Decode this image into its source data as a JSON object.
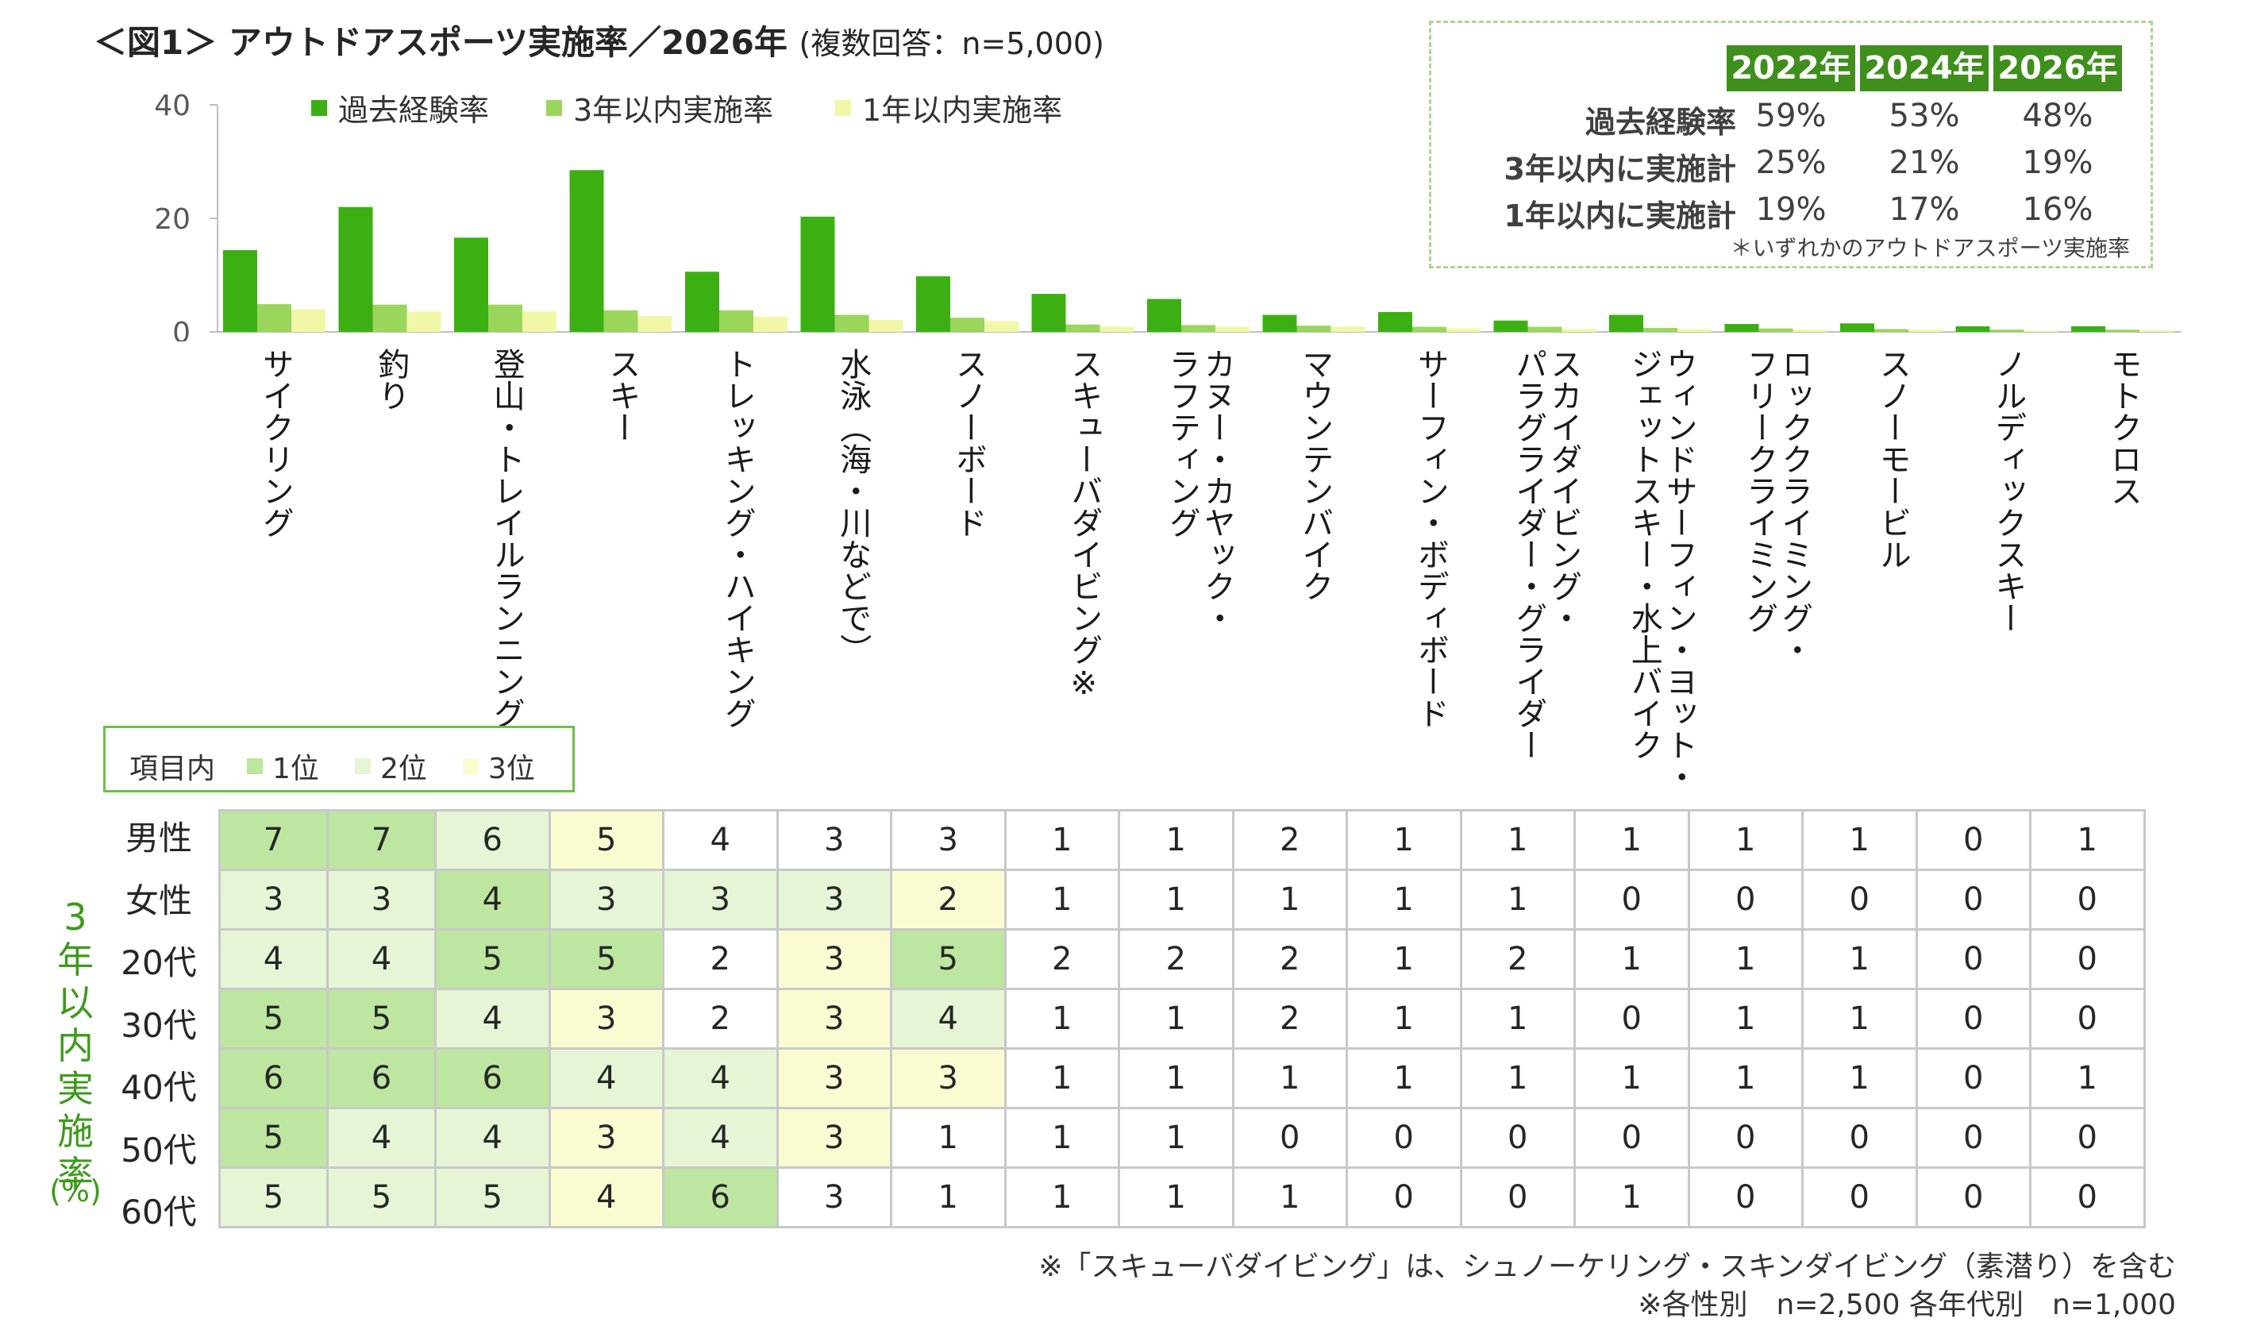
{
  "title": {
    "main": "＜図1＞ アウトドアスポーツ実施率／2026年",
    "sub": "(複数回答：n=5,000)"
  },
  "colors": {
    "past": "#3cb013",
    "three_year": "#9bd65c",
    "one_year": "#f1f7a6",
    "rank1": "#bde6a0",
    "rank2": "#e6f5d6",
    "rank3": "#fbfbd2",
    "header_green": "#3f8f1c",
    "side_label_green": "#3f9a1c"
  },
  "chart_data": {
    "type": "bar",
    "unit_label": "(%)",
    "ylim": [
      0,
      40
    ],
    "yticks": [
      "0",
      "20",
      "40"
    ],
    "categories": [
      "サイクリング",
      "釣り",
      "登山・トレイルランニング",
      "スキー",
      "トレッキング・ハイキング",
      "水泳（海・川などで）",
      "スノーボード",
      "スキューバダイビング※",
      "カヌー・カヤック・\nラフティング",
      "マウンテンバイク",
      "サーフィン・ボディボード",
      "スカイダイビング・\nパラグライダー・グライダー",
      "ウィンドサーフィン・ヨット・\nジェットスキー・水上バイク",
      "ロッククライミング・\nフリークライミング",
      "スノーモービル",
      "ノルディックスキー",
      "モトクロス"
    ],
    "series": [
      {
        "name": "過去経験率",
        "values": [
          14.4,
          22.0,
          16.6,
          28.5,
          10.6,
          20.3,
          9.8,
          6.7,
          5.8,
          3.0,
          3.5,
          2.0,
          3.0,
          1.4,
          1.5,
          1.0,
          1.0
        ]
      },
      {
        "name": "3年以内実施率",
        "values": [
          4.9,
          4.8,
          4.8,
          3.8,
          3.8,
          3.0,
          2.5,
          1.3,
          1.2,
          1.1,
          0.9,
          0.9,
          0.7,
          0.6,
          0.5,
          0.4,
          0.4
        ]
      },
      {
        "name": "1年以内実施率",
        "values": [
          4.0,
          3.6,
          3.6,
          2.8,
          2.7,
          2.1,
          1.9,
          0.9,
          0.9,
          0.9,
          0.6,
          0.5,
          0.5,
          0.4,
          0.4,
          0.2,
          0.3
        ]
      }
    ]
  },
  "summary": {
    "headers": [
      "2022年",
      "2024年",
      "2026年"
    ],
    "rows": [
      {
        "label": "過去経験率",
        "values": [
          "59%",
          "53%",
          "48%"
        ]
      },
      {
        "label": "3年以内に実施計",
        "values": [
          "25%",
          "21%",
          "19%"
        ]
      },
      {
        "label": "1年以内に実施計",
        "values": [
          "19%",
          "17%",
          "16%"
        ]
      }
    ],
    "note": "＊いずれかのアウトドアスポーツ実施率"
  },
  "table_legend": {
    "title": "項目内",
    "items": [
      "1位",
      "2位",
      "3位"
    ]
  },
  "table": {
    "side_label": "3年以内実施率",
    "side_unit": "(%)",
    "rows": [
      {
        "label": "男性",
        "values": [
          7,
          7,
          6,
          5,
          4,
          3,
          3,
          1,
          1,
          2,
          1,
          1,
          1,
          1,
          1,
          0,
          1
        ],
        "ranks": [
          1,
          1,
          2,
          3,
          0,
          0,
          0,
          0,
          0,
          0,
          0,
          0,
          0,
          0,
          0,
          0,
          0
        ]
      },
      {
        "label": "女性",
        "values": [
          3,
          3,
          4,
          3,
          3,
          3,
          2,
          1,
          1,
          1,
          1,
          1,
          0,
          0,
          0,
          0,
          0
        ],
        "ranks": [
          2,
          2,
          1,
          2,
          2,
          2,
          3,
          0,
          0,
          0,
          0,
          0,
          0,
          0,
          0,
          0,
          0
        ]
      },
      {
        "label": "20代",
        "values": [
          4,
          4,
          5,
          5,
          2,
          3,
          5,
          2,
          2,
          2,
          1,
          2,
          1,
          1,
          1,
          0,
          0
        ],
        "ranks": [
          2,
          2,
          1,
          1,
          0,
          3,
          1,
          0,
          0,
          0,
          0,
          0,
          0,
          0,
          0,
          0,
          0
        ]
      },
      {
        "label": "30代",
        "values": [
          5,
          5,
          4,
          3,
          2,
          3,
          4,
          1,
          1,
          2,
          1,
          1,
          0,
          1,
          1,
          0,
          0
        ],
        "ranks": [
          1,
          1,
          2,
          3,
          0,
          3,
          2,
          0,
          0,
          0,
          0,
          0,
          0,
          0,
          0,
          0,
          0
        ]
      },
      {
        "label": "40代",
        "values": [
          6,
          6,
          6,
          4,
          4,
          3,
          3,
          1,
          1,
          1,
          1,
          1,
          1,
          1,
          1,
          0,
          1
        ],
        "ranks": [
          1,
          1,
          1,
          2,
          2,
          3,
          3,
          0,
          0,
          0,
          0,
          0,
          0,
          0,
          0,
          0,
          0
        ]
      },
      {
        "label": "50代",
        "values": [
          5,
          4,
          4,
          3,
          4,
          3,
          1,
          1,
          1,
          0,
          0,
          0,
          0,
          0,
          0,
          0,
          0
        ],
        "ranks": [
          1,
          2,
          2,
          3,
          2,
          3,
          0,
          0,
          0,
          0,
          0,
          0,
          0,
          0,
          0,
          0,
          0
        ]
      },
      {
        "label": "60代",
        "values": [
          5,
          5,
          5,
          4,
          6,
          3,
          1,
          1,
          1,
          1,
          0,
          0,
          1,
          0,
          0,
          0,
          0
        ],
        "ranks": [
          2,
          2,
          2,
          3,
          1,
          0,
          0,
          0,
          0,
          0,
          0,
          0,
          0,
          0,
          0,
          0,
          0
        ]
      }
    ]
  },
  "footnotes": [
    "※「スキューバダイビング」は、シュノーケリング・スキンダイビング（素潜り）を含む",
    "※各性別　n=2,500 各年代別　n=1,000"
  ]
}
